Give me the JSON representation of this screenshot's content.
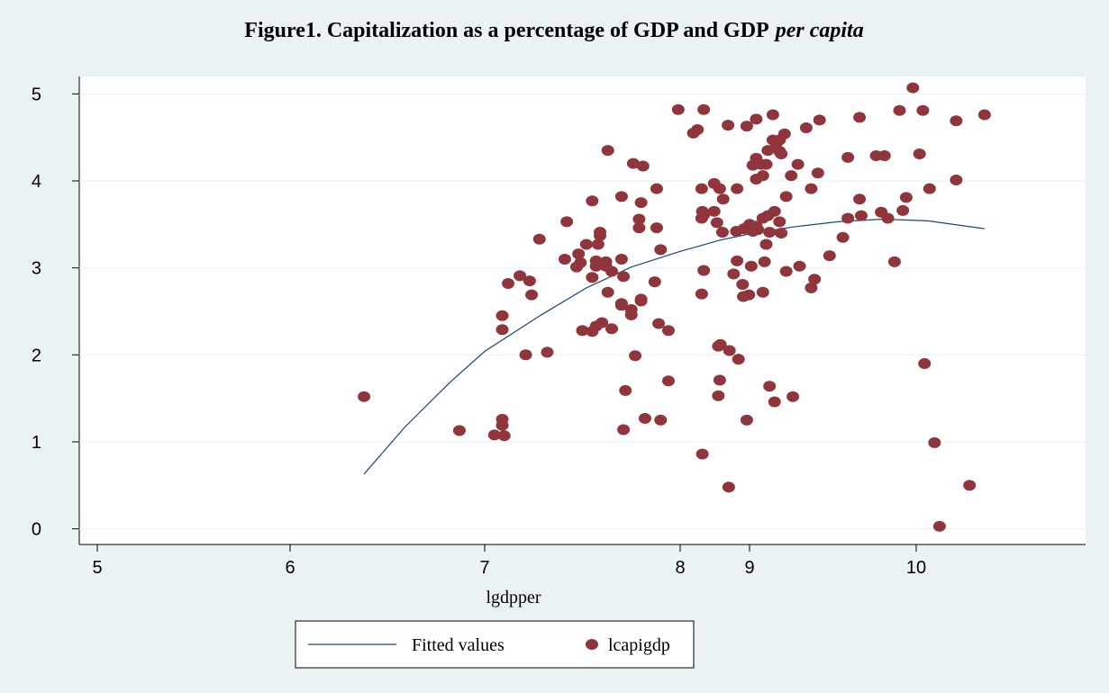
{
  "chart_data": {
    "type": "scatter",
    "title": [
      "Figure1. Capitalization as a percentage of GDP and GDP",
      "per capita"
    ],
    "x_label": "lgdpper",
    "xlim": [
      4.9,
      11
    ],
    "xticks": [
      5,
      6,
      7,
      8,
      9,
      10
    ],
    "ylim": [
      -0.18,
      5.2
    ],
    "yticks": [
      0,
      1,
      2,
      3,
      4,
      5
    ],
    "grid": true,
    "legend": "bottom",
    "series": [
      {
        "name": "Fitted values",
        "type": "line",
        "color": "#1a476f",
        "x": [
          6.38,
          6.59,
          6.82,
          7.0,
          7.29,
          7.52,
          7.75,
          8.0,
          8.58,
          9.0,
          9.26,
          9.53,
          9.8,
          10.07,
          10.41
        ],
        "values": [
          0.63,
          1.17,
          1.68,
          2.04,
          2.46,
          2.77,
          3.01,
          3.19,
          3.32,
          3.39,
          3.47,
          3.53,
          3.56,
          3.54,
          3.45
        ]
      },
      {
        "name": "lcapigdp",
        "type": "scatter",
        "color": "#90353b",
        "x": [
          6.38,
          6.87,
          7.05,
          7.1,
          7.09,
          7.09,
          7.09,
          7.09,
          7.12,
          7.18,
          7.23,
          7.24,
          7.21,
          7.28,
          7.32,
          7.42,
          7.41,
          7.48,
          7.47,
          7.49,
          7.52,
          7.5,
          7.55,
          7.55,
          7.57,
          7.57,
          7.58,
          7.57,
          7.59,
          7.59,
          7.6,
          7.55,
          7.63,
          7.62,
          7.63,
          7.62,
          7.65,
          7.65,
          7.7,
          7.7,
          7.7,
          7.71,
          7.71,
          7.7,
          7.72,
          7.75,
          7.75,
          7.76,
          7.77,
          7.79,
          7.79,
          7.8,
          7.8,
          7.8,
          7.81,
          7.82,
          7.87,
          7.88,
          7.88,
          7.89,
          7.9,
          7.9,
          7.94,
          7.94,
          7.99,
          8.19,
          8.25,
          8.34,
          8.31,
          8.34,
          8.32,
          8.34,
          8.31,
          8.32,
          8.31,
          8.49,
          8.49,
          8.53,
          8.55,
          8.58,
          8.55,
          8.57,
          8.57,
          8.62,
          8.61,
          8.69,
          8.7,
          8.71,
          8.77,
          8.82,
          8.81,
          8.82,
          8.84,
          8.9,
          8.91,
          8.92,
          8.96,
          8.96,
          8.99,
          9.0,
          9.01,
          9.02,
          9.02,
          9.03,
          9.04,
          9.04,
          9.04,
          9.04,
          9.05,
          9.07,
          9.08,
          9.08,
          9.08,
          9.09,
          9.1,
          9.1,
          9.11,
          9.11,
          9.12,
          9.12,
          9.14,
          9.14,
          9.15,
          9.15,
          9.16,
          9.18,
          9.18,
          9.18,
          9.19,
          9.19,
          9.21,
          9.22,
          9.22,
          9.25,
          9.26,
          9.29,
          9.3,
          9.34,
          9.37,
          9.37,
          9.39,
          9.41,
          9.42,
          9.48,
          9.56,
          9.59,
          9.59,
          9.66,
          9.66,
          9.67,
          9.76,
          9.79,
          9.81,
          9.83,
          9.87,
          9.9,
          9.92,
          9.94,
          9.98,
          10.02,
          10.04,
          10.05,
          10.08,
          10.11,
          10.14,
          10.24,
          10.24,
          10.32,
          10.41
        ],
        "values": [
          1.52,
          1.13,
          1.08,
          1.07,
          1.26,
          1.19,
          2.45,
          2.29,
          2.82,
          2.91,
          2.85,
          2.69,
          2.0,
          3.33,
          2.03,
          3.53,
          3.1,
          3.16,
          3.01,
          3.06,
          3.27,
          2.28,
          3.77,
          2.89,
          2.33,
          3.08,
          3.27,
          3.02,
          3.37,
          3.41,
          2.37,
          2.27,
          4.35,
          3.07,
          2.72,
          3.02,
          2.96,
          2.3,
          3.1,
          2.59,
          3.82,
          1.14,
          2.9,
          2.57,
          1.59,
          2.52,
          2.46,
          4.2,
          1.99,
          3.46,
          3.56,
          3.75,
          2.64,
          2.62,
          4.17,
          1.27,
          2.84,
          3.46,
          3.91,
          2.36,
          1.25,
          3.21,
          2.28,
          1.7,
          4.82,
          4.55,
          4.59,
          4.82,
          3.57,
          3.61,
          3.65,
          2.97,
          2.7,
          0.86,
          3.91,
          3.97,
          3.65,
          3.52,
          2.1,
          2.12,
          1.53,
          1.71,
          3.91,
          3.79,
          3.41,
          4.64,
          0.48,
          2.05,
          2.93,
          3.08,
          3.42,
          3.91,
          1.95,
          2.81,
          2.67,
          3.45,
          4.63,
          1.25,
          2.69,
          3.5,
          3.02,
          4.18,
          3.42,
          3.46,
          4.71,
          4.26,
          4.02,
          3.48,
          3.44,
          4.19,
          4.06,
          3.57,
          2.72,
          3.07,
          4.19,
          3.27,
          3.6,
          4.35,
          1.64,
          3.41,
          4.76,
          4.47,
          1.46,
          3.65,
          4.43,
          4.47,
          4.34,
          3.53,
          4.31,
          3.4,
          4.54,
          3.82,
          2.96,
          4.06,
          1.52,
          4.19,
          3.02,
          4.61,
          2.77,
          3.91,
          2.87,
          4.09,
          4.7,
          3.14,
          3.35,
          4.27,
          3.57,
          4.73,
          3.79,
          3.6,
          4.29,
          3.64,
          4.29,
          3.57,
          3.07,
          4.81,
          3.66,
          3.81,
          5.07,
          4.31,
          4.81,
          1.9,
          3.91,
          0.99,
          0.03,
          4.01,
          4.69,
          0.5,
          4.76
        ]
      }
    ]
  }
}
